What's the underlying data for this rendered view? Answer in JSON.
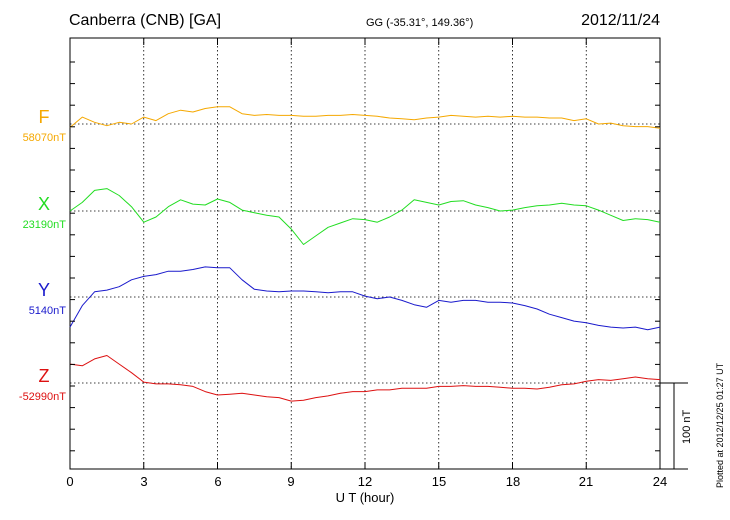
{
  "header": {
    "station": "Canberra (CNB)  [GA]",
    "coords": "GG (-35.31°, 149.36°)",
    "date": "2012/11/24"
  },
  "xaxis": {
    "label": "U T (hour)",
    "ticks": [
      "0",
      "3",
      "6",
      "9",
      "12",
      "15",
      "18",
      "21",
      "24"
    ]
  },
  "scale": {
    "label": "100 nT"
  },
  "footer_note": "Plotted at 2012/12/25 01:27 UT",
  "colors": {
    "F": "#f5a800",
    "X": "#22dd22",
    "Y": "#1a1acc",
    "Z": "#dd1111",
    "axis": "#000000"
  },
  "components": [
    {
      "key": "F",
      "letter": "F",
      "baseline": "58070nT",
      "color": "#f5a800"
    },
    {
      "key": "X",
      "letter": "X",
      "baseline": "23190nT",
      "color": "#22dd22"
    },
    {
      "key": "Y",
      "letter": "Y",
      "baseline": "5140nT",
      "color": "#1a1acc"
    },
    {
      "key": "Z",
      "letter": "Z",
      "baseline": "-52990nT",
      "color": "#dd1111"
    }
  ],
  "chart_data": {
    "type": "line",
    "xlabel": "U T (hour)",
    "xlim": [
      0,
      24
    ],
    "x_ticks": [
      0,
      3,
      6,
      9,
      12,
      15,
      18,
      21,
      24
    ],
    "grid": true,
    "units": "nT",
    "x": [
      0,
      0.5,
      1,
      1.5,
      2,
      2.5,
      3,
      3.5,
      4,
      4.5,
      5,
      5.5,
      6,
      6.5,
      7,
      7.5,
      8,
      8.5,
      9,
      9.5,
      10,
      10.5,
      11,
      11.5,
      12,
      12.5,
      13,
      13.5,
      14,
      14.5,
      15,
      15.5,
      16,
      16.5,
      17,
      17.5,
      18,
      18.5,
      19,
      19.5,
      20,
      20.5,
      21,
      21.5,
      22,
      22.5,
      23,
      23.5,
      24
    ],
    "series": [
      {
        "name": "F",
        "baseline": "58070nT",
        "values": [
          -4,
          8,
          2,
          -2,
          2,
          0,
          8,
          4,
          12,
          16,
          14,
          18,
          20,
          20,
          12,
          10,
          11,
          10,
          10,
          9,
          9,
          10,
          10,
          11,
          10,
          9,
          7,
          6,
          5,
          7,
          8,
          10,
          9,
          8,
          9,
          8,
          9,
          8,
          8,
          7,
          7,
          4,
          6,
          0,
          1,
          -2,
          -3,
          -3,
          -5
        ]
      },
      {
        "name": "X",
        "baseline": "23190nT",
        "values": [
          0,
          10,
          24,
          26,
          18,
          5,
          -13,
          -7,
          5,
          13,
          8,
          7,
          14,
          10,
          1,
          -2,
          -5,
          -7,
          -21,
          -39,
          -29,
          -19,
          -14,
          -9,
          -10,
          -13,
          -7,
          1,
          13,
          10,
          7,
          11,
          12,
          7,
          4,
          0,
          1,
          4,
          6,
          7,
          9,
          7,
          6,
          1,
          -5,
          -11,
          -9,
          -10,
          -13
        ]
      },
      {
        "name": "Y",
        "baseline": "5140nT",
        "values": [
          -35,
          -10,
          6,
          8,
          12,
          20,
          24,
          26,
          30,
          30,
          32,
          35,
          34,
          34,
          20,
          9,
          7,
          6,
          7,
          7,
          6,
          5,
          6,
          6,
          1,
          -2,
          0,
          -4,
          -9,
          -12,
          -4,
          -6,
          -4,
          -4,
          -6,
          -6,
          -7,
          -10,
          -14,
          -20,
          -24,
          -28,
          -30,
          -33,
          -35,
          -36,
          -35,
          -38,
          -35
        ]
      },
      {
        "name": "Z",
        "baseline": "-52990nT",
        "values": [
          22,
          20,
          28,
          32,
          22,
          12,
          1,
          -1,
          -1,
          -2,
          -4,
          -10,
          -14,
          -13,
          -12,
          -14,
          -16,
          -17,
          -21,
          -20,
          -17,
          -15,
          -12,
          -10,
          -10,
          -8,
          -8,
          -6,
          -6,
          -6,
          -4,
          -4,
          -3,
          -4,
          -4,
          -5,
          -6,
          -6,
          -7,
          -5,
          -2,
          -1,
          2,
          4,
          3,
          5,
          7,
          5,
          4
        ]
      }
    ],
    "scale_bar_nT": 100
  }
}
